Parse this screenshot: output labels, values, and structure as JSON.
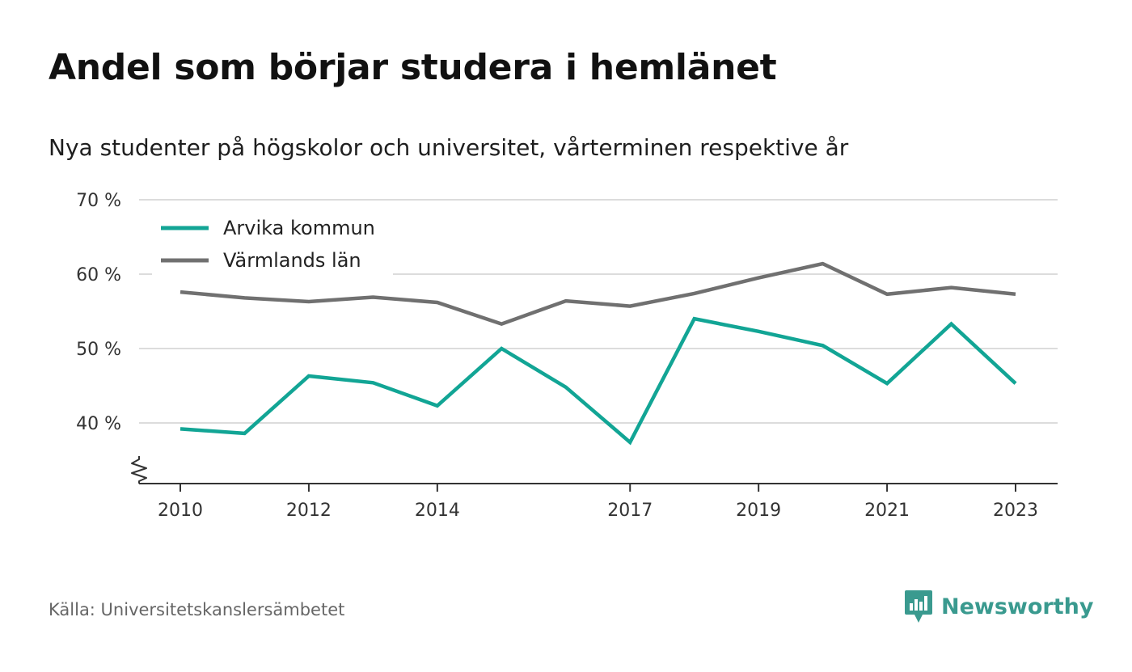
{
  "header": {
    "title": "Andel som börjar studera i hemlänet",
    "subtitle": "Nya studenter på högskolor och universitet, vårterminen respektive år"
  },
  "footer": {
    "source": "Källa: Universitetskanslersämbetet",
    "brand": "Newsworthy",
    "brand_color": "#3a9a8f"
  },
  "chart_data": {
    "type": "line",
    "x": [
      2010,
      2011,
      2012,
      2013,
      2014,
      2015,
      2016,
      2017,
      2018,
      2019,
      2020,
      2021,
      2022,
      2023
    ],
    "x_tick_labels": [
      "2010",
      "2012",
      "2014",
      "2017",
      "2019",
      "2021",
      "2023"
    ],
    "y_ticks": [
      40,
      50,
      60,
      70
    ],
    "y_tick_labels": [
      "40 %",
      "50 %",
      "60 %",
      "70 %"
    ],
    "ylim": [
      32,
      70
    ],
    "y_axis_break": true,
    "grid": "horizontal",
    "legend_position": "top-left",
    "series": [
      {
        "name": "Arvika kommun",
        "color": "#12a595",
        "values": [
          39.2,
          38.6,
          46.3,
          45.4,
          42.3,
          50.0,
          44.8,
          37.4,
          54.0,
          52.3,
          50.4,
          45.3,
          53.3,
          45.3
        ]
      },
      {
        "name": "Värmlands län",
        "color": "#707070",
        "values": [
          57.6,
          56.8,
          56.3,
          56.9,
          56.2,
          53.3,
          56.4,
          55.7,
          57.4,
          59.5,
          61.4,
          57.3,
          58.2,
          57.3
        ]
      }
    ]
  }
}
